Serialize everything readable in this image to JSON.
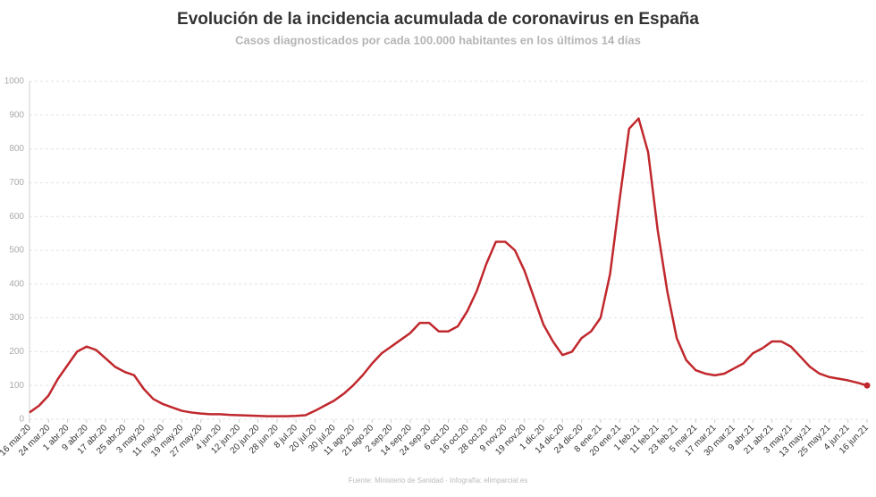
{
  "chart_data": {
    "type": "line",
    "title": "Evolución de la incidencia acumulada de coronavirus en España",
    "subtitle": "Casos diagnosticados por cada 100.000 habitantes en los últimos 14 días",
    "source": "Fuente: Ministerio de Sanidad · Infografía: elimparcial.es",
    "categories": [
      "16 mar.20",
      null,
      "24 mar.20",
      null,
      "1 abr.20",
      null,
      "9 abr.20",
      null,
      "17 abr.20",
      null,
      "25 abr.20",
      null,
      "3 may.20",
      null,
      "11 may.20",
      null,
      "19 may.20",
      null,
      "27 may.20",
      null,
      "4 jun.20",
      null,
      "12 jun.20",
      null,
      "20 jun.20",
      null,
      "28 jun.20",
      null,
      "8 jul.20",
      null,
      "20 jul.20",
      null,
      "30 jul.20",
      null,
      "11 ago.20",
      null,
      "21 ago.20",
      null,
      "2 sep.20",
      null,
      "14 sep.20",
      null,
      "24 sep.20",
      null,
      "6 oct.20",
      null,
      "16 oct.20",
      null,
      "28 oct.20",
      null,
      "9 nov.20",
      null,
      "19 nov.20",
      null,
      "1 dic.20",
      null,
      "14 dic.20",
      null,
      "24 dic.20",
      null,
      "8 ene.21",
      null,
      "20 ene.21",
      null,
      "1 feb.21",
      null,
      "11 feb.21",
      null,
      "23 feb.21",
      null,
      "5 mar.21",
      null,
      "17 mar.21",
      null,
      "30 mar.21",
      null,
      "9 abr.21",
      null,
      "21 abr.21",
      null,
      "3 may.21",
      null,
      "13 may.21",
      null,
      "25 may.21",
      null,
      "4 jun.21",
      null,
      "16 jun.21"
    ],
    "values": [
      20,
      40,
      70,
      120,
      160,
      200,
      215,
      205,
      180,
      155,
      140,
      130,
      90,
      60,
      45,
      35,
      25,
      20,
      17,
      15,
      15,
      13,
      12,
      11,
      10,
      9,
      9,
      9,
      10,
      12,
      25,
      40,
      55,
      75,
      100,
      130,
      165,
      195,
      215,
      235,
      255,
      285,
      285,
      260,
      260,
      275,
      320,
      380,
      460,
      525,
      525,
      500,
      440,
      360,
      280,
      230,
      190,
      200,
      240,
      260,
      300,
      430,
      650,
      860,
      890,
      790,
      560,
      380,
      240,
      175,
      145,
      135,
      130,
      135,
      150,
      165,
      195,
      210,
      230,
      230,
      215,
      185,
      155,
      135,
      125,
      120,
      115,
      108,
      100
    ],
    "color": "#c0282d",
    "ylim": [
      0,
      1000
    ],
    "yticks": [
      0,
      100,
      200,
      300,
      400,
      500,
      600,
      700,
      800,
      900,
      1000
    ],
    "grid": true
  }
}
